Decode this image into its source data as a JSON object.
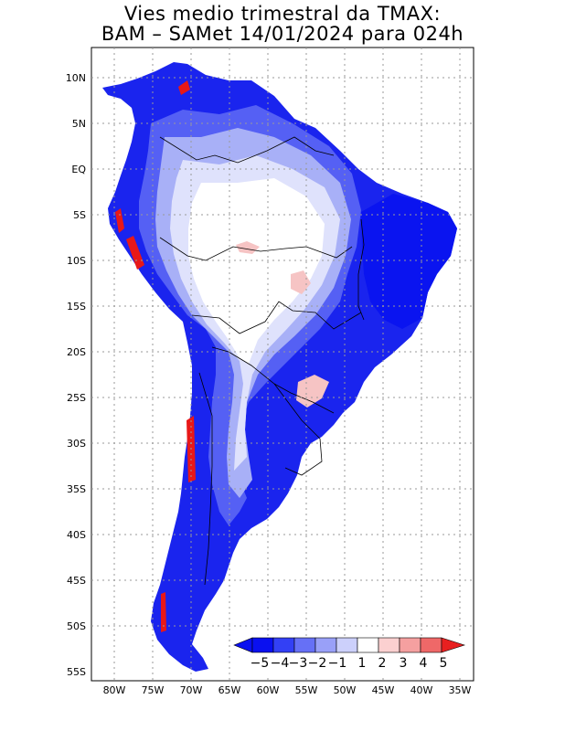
{
  "title": {
    "line1": "Vies medio trimestral da TMAX:",
    "line2": "BAM – SAMet 14/01/2024  para 024h"
  },
  "axes": {
    "lat_labels": [
      "10N",
      "5N",
      "EQ",
      "5S",
      "10S",
      "15S",
      "20S",
      "25S",
      "30S",
      "35S",
      "40S",
      "45S",
      "50S",
      "55S"
    ],
    "lon_labels": [
      "80W",
      "75W",
      "70W",
      "65W",
      "60W",
      "55W",
      "50W",
      "45W",
      "40W",
      "35W"
    ]
  },
  "colorbar": {
    "labels": [
      "−5",
      "−4",
      "−3",
      "−2",
      "−1",
      "1",
      "2",
      "3",
      "4",
      "5"
    ],
    "colors": [
      "#0a10f0",
      "#3340f5",
      "#6670f6",
      "#99a0f8",
      "#ccd0fb",
      "#ffffff",
      "#fbd0d0",
      "#f5a0a0",
      "#ef6868",
      "#e82020",
      "#e80000"
    ]
  },
  "colors": {
    "strong_blue": "#1a24ee",
    "medium_blue": "#5560f4",
    "light_blue": "#a8b0f7",
    "pale_blue": "#dfe2fc",
    "pale_red": "#f6c4c4",
    "strong_red": "#e81818",
    "border": "#000000",
    "grid": "#9a9a9a"
  }
}
